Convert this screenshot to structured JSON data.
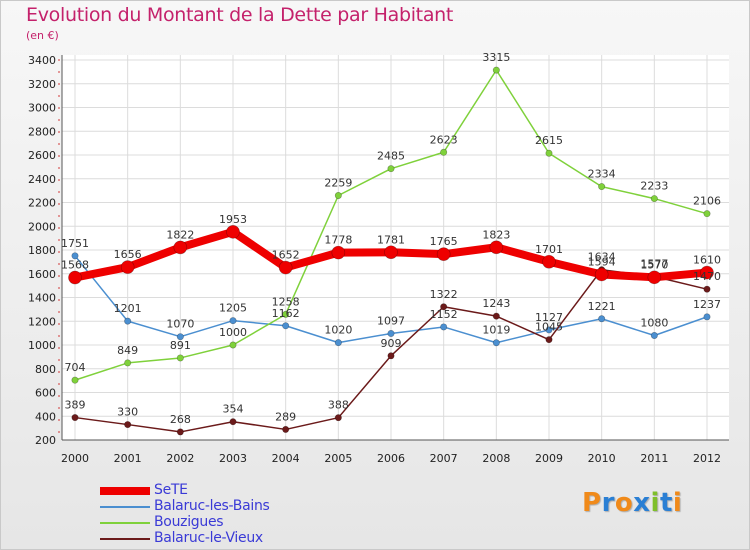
{
  "chart_data": {
    "type": "line",
    "title": "Evolution du Montant de la Dette par Habitant",
    "subtitle": "(en €)",
    "x": [
      "2000",
      "2001",
      "2002",
      "2003",
      "2004",
      "2005",
      "2006",
      "2007",
      "2008",
      "2009",
      "2010",
      "2011",
      "2012"
    ],
    "ylim": [
      200,
      3400
    ],
    "yticks": [
      200,
      400,
      600,
      800,
      1000,
      1200,
      1400,
      1600,
      1800,
      2000,
      2200,
      2400,
      2600,
      2800,
      3000,
      3200,
      3400
    ],
    "grid": true,
    "legend_position": "bottom-left",
    "series": [
      {
        "name": "SeTE",
        "color": "#ee0000",
        "values": [
          1568,
          1656,
          1822,
          1953,
          1652,
          1778,
          1781,
          1765,
          1823,
          1701,
          1594,
          1570,
          1610
        ]
      },
      {
        "name": "Balaruc-les-Bains",
        "color": "#4b8fd0",
        "values": [
          1751,
          1201,
          1070,
          1205,
          1162,
          1020,
          1097,
          1152,
          1019,
          1127,
          1221,
          1080,
          1237
        ]
      },
      {
        "name": "Bouzigues",
        "color": "#7fd13b",
        "values": [
          704,
          849,
          891,
          1000,
          1258,
          2259,
          2485,
          2623,
          3315,
          2615,
          2334,
          2233,
          2106
        ]
      },
      {
        "name": "Balaruc-le-Vieux",
        "color": "#6b1a1a",
        "values": [
          389,
          330,
          268,
          354,
          289,
          388,
          909,
          1322,
          1243,
          1045,
          1634,
          1577,
          1470
        ]
      }
    ]
  },
  "logo": {
    "letters": [
      "P",
      "r",
      "o",
      "x",
      "i",
      "t",
      "i"
    ],
    "colors": [
      "#f08a1a",
      "#2a7fd4",
      "#f08a1a",
      "#2a7fd4",
      "#7fbf2a",
      "#2a7fd4",
      "#f08a1a"
    ]
  }
}
